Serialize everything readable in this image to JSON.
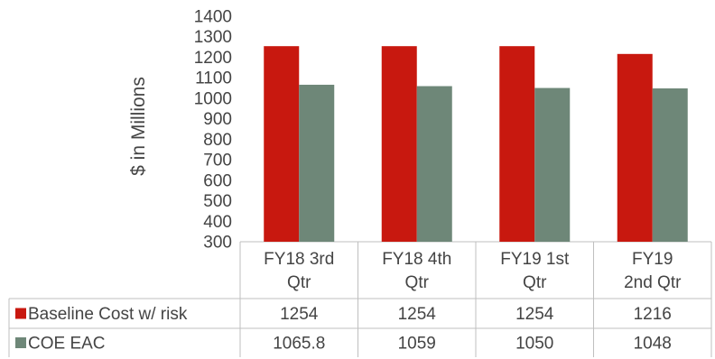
{
  "chart_data": {
    "type": "bar",
    "ylabel": "$ in Millions",
    "ylim": [
      300,
      1400
    ],
    "yticks": [
      300,
      400,
      500,
      600,
      700,
      800,
      900,
      1000,
      1100,
      1200,
      1300,
      1400
    ],
    "categories": [
      [
        "FY18 3rd",
        "Qtr"
      ],
      [
        "FY18 4th",
        "Qtr"
      ],
      [
        "FY19 1st",
        "Qtr"
      ],
      [
        "FY19",
        "2nd Qtr"
      ]
    ],
    "series": [
      {
        "name": "Baseline Cost w/ risk",
        "color": "#C8180F",
        "values": [
          1254,
          1254,
          1254,
          1216
        ],
        "labels": [
          "1254",
          "1254",
          "1254",
          "1216"
        ]
      },
      {
        "name": "COE EAC",
        "color": "#6E8778",
        "values": [
          1065.8,
          1059,
          1050,
          1048
        ],
        "labels": [
          "1065.8",
          "1059",
          "1050",
          "1048"
        ]
      }
    ],
    "legend": "data-table",
    "grid": false
  }
}
